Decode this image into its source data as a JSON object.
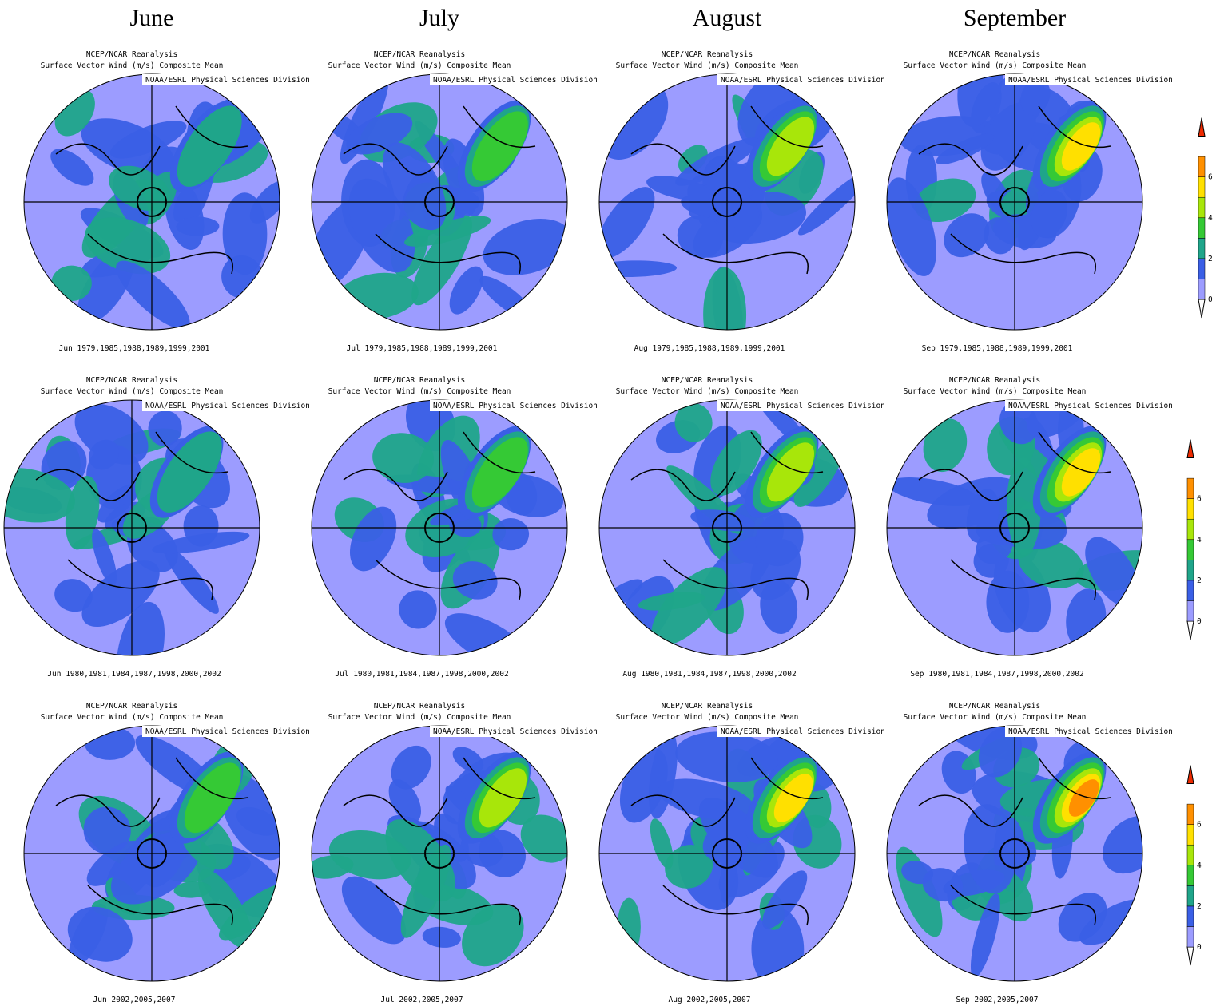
{
  "columns": [
    "June",
    "July",
    "August",
    "September"
  ],
  "panel_title": [
    "NCEP/NCAR Reanalysis",
    "Surface Vector Wind (m/s) Composite Mean"
  ],
  "credit": "NOAA/ESRL Physical Sciences Division",
  "captions": [
    [
      "Jun 1979,1985,1988,1989,1999,2001",
      "Jul 1979,1985,1988,1989,1999,2001",
      "Aug 1979,1985,1988,1989,1999,2001",
      "Sep 1979,1985,1988,1989,1999,2001"
    ],
    [
      "Jun 1980,1981,1984,1987,1998,2000,2002",
      "Jul 1980,1981,1984,1987,1998,2000,2002",
      "Aug 1980,1981,1984,1987,1998,2000,2002",
      "Sep 1980,1981,1984,1987,1998,2000,2002"
    ],
    [
      "Jun 2002,2005,2007",
      "Jul 2002,2005,2007",
      "Aug 2002,2005,2007",
      "Sep 2002,2005,2007"
    ]
  ],
  "colorbar_ticks": [
    0,
    2,
    4,
    6
  ]
}
